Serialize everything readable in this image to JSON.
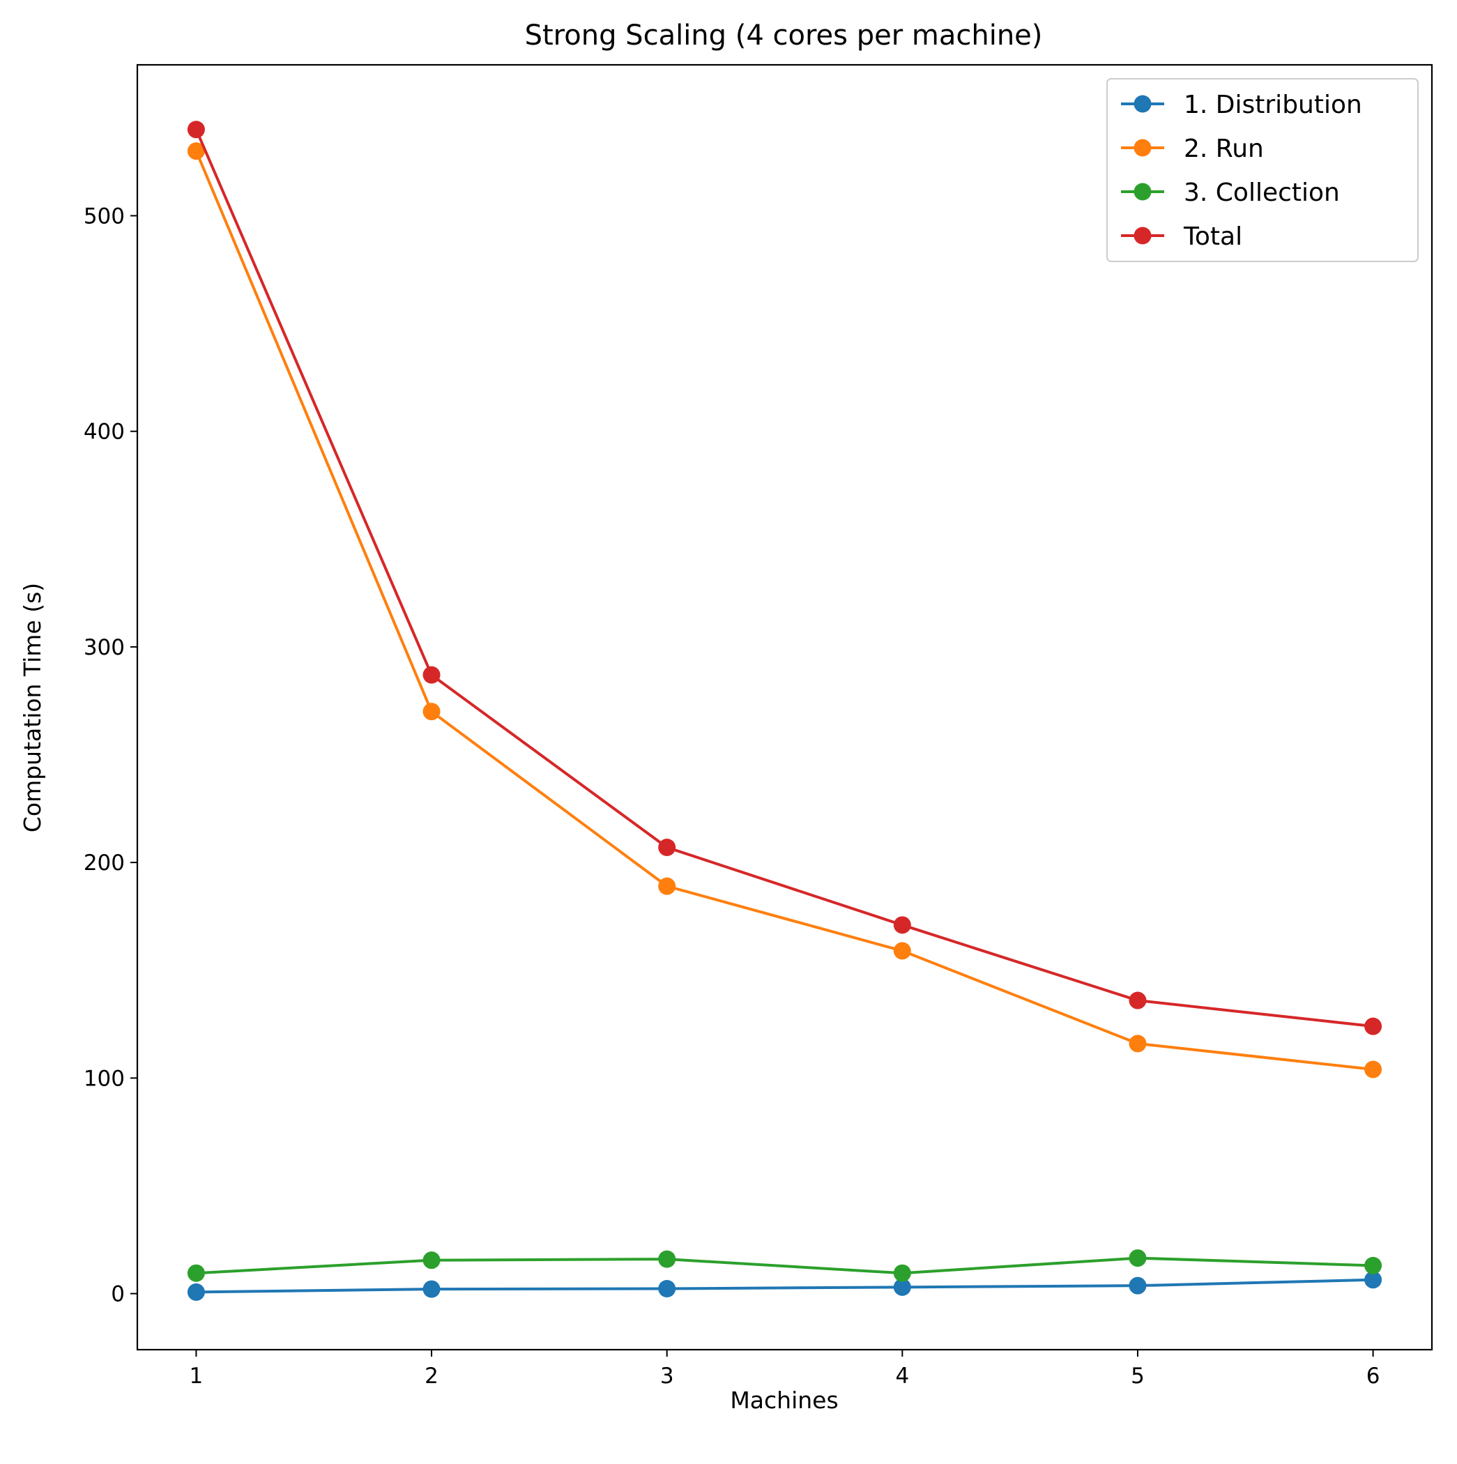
{
  "chart_data": {
    "type": "line",
    "title": "Strong Scaling (4 cores per machine)",
    "xlabel": "Machines",
    "ylabel": "Computation Time (s)",
    "x": [
      1,
      2,
      3,
      4,
      5,
      6
    ],
    "xlim": [
      0.75,
      6.25
    ],
    "ylim": [
      -26,
      570
    ],
    "xticks": [
      "1",
      "2",
      "3",
      "4",
      "5",
      "6"
    ],
    "yticks": [
      "0",
      "100",
      "200",
      "300",
      "400",
      "500"
    ],
    "grid": false,
    "legend_position": "top-right",
    "series": [
      {
        "name": "1. Distribution",
        "color": "#1f77b4",
        "values": [
          0.7,
          2.1,
          2.3,
          3.0,
          3.7,
          6.4
        ]
      },
      {
        "name": "2. Run",
        "color": "#ff7f0e",
        "values": [
          530,
          270,
          189,
          159,
          116,
          104
        ]
      },
      {
        "name": "3. Collection",
        "color": "#2ca02c",
        "values": [
          9.5,
          15.5,
          16.0,
          9.5,
          16.5,
          13.0
        ]
      },
      {
        "name": "Total",
        "color": "#d62728",
        "values": [
          540,
          287,
          207,
          171,
          136,
          124
        ]
      }
    ]
  }
}
